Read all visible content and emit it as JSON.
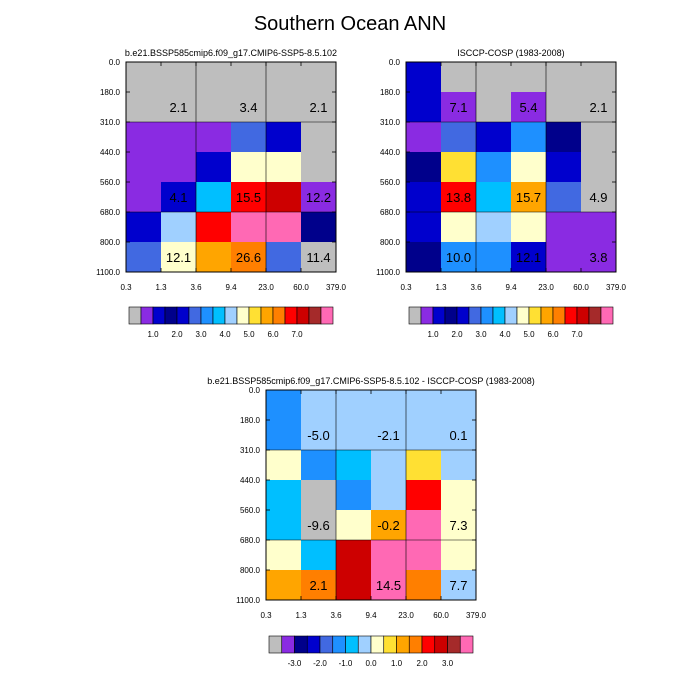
{
  "title": "Southern Ocean ANN",
  "colors": {
    "abs_palette": [
      "#bebebe",
      "#8a2be2",
      "#0000cd",
      "#00008b",
      "#0000cd",
      "#4169e1",
      "#1e90ff",
      "#00bfff",
      "#a0d0ff",
      "#ffffcc",
      "#ffe033",
      "#ffa500",
      "#ff7f00",
      "#ff0000",
      "#cd0000",
      "#a52a2a",
      "#ff69b4"
    ],
    "diff_palette": [
      "#bebebe",
      "#8a2be2",
      "#00008b",
      "#0000cd",
      "#4169e1",
      "#1e90ff",
      "#00bfff",
      "#a0d0ff",
      "#ffffcc",
      "#ffe033",
      "#ffa500",
      "#ff7f00",
      "#ff0000",
      "#cd0000",
      "#a52a2a",
      "#ff69b4"
    ]
  },
  "chart_data": [
    {
      "type": "heatmap",
      "title": "b.e21.BSSP585cmip6.f09_g17.CMIP6-SSP5-8.5.102",
      "xticks": [
        "0.3",
        "1.3",
        "3.6",
        "9.4",
        "23.0",
        "60.0",
        "379.0"
      ],
      "yticks": [
        "0.0",
        "180.0",
        "310.0",
        "440.0",
        "560.0",
        "680.0",
        "800.0",
        "1100.0"
      ],
      "cells": [
        [
          "#bebebe",
          "#bebebe",
          "#bebebe",
          "#bebebe",
          "#bebebe",
          "#bebebe"
        ],
        [
          "#bebebe",
          "#bebebe",
          "#bebebe",
          "#bebebe",
          "#bebebe",
          "#bebebe"
        ],
        [
          "#8a2be2",
          "#8a2be2",
          "#8a2be2",
          "#4169e1",
          "#0000cd",
          "#bebebe"
        ],
        [
          "#8a2be2",
          "#8a2be2",
          "#0000cd",
          "#ffffcc",
          "#ffffcc",
          "#bebebe"
        ],
        [
          "#8a2be2",
          "#0000cd",
          "#00bfff",
          "#ff0000",
          "#cd0000",
          "#8a2be2"
        ],
        [
          "#0000cd",
          "#a0d0ff",
          "#ff0000",
          "#ff69b4",
          "#ff69b4",
          "#00008b"
        ],
        [
          "#4169e1",
          "#ffffcc",
          "#ffa500",
          "#ff7f00",
          "#4169e1",
          "#bebebe"
        ]
      ],
      "labels": [
        {
          "text": "2.1",
          "row": 1,
          "col": 0.5
        },
        {
          "text": "3.4",
          "row": 1,
          "col": 2.5
        },
        {
          "text": "2.1",
          "row": 1,
          "col": 4.5
        },
        {
          "text": "4.1",
          "row": 4,
          "col": 0.5
        },
        {
          "text": "15.5",
          "row": 4,
          "col": 2.5
        },
        {
          "text": "12.2",
          "row": 4,
          "col": 4.5
        },
        {
          "text": "12.1",
          "row": 6,
          "col": 0.5
        },
        {
          "text": "26.6",
          "row": 6,
          "col": 2.5
        },
        {
          "text": "11.4",
          "row": 6,
          "col": 4.5
        }
      ],
      "colorbar": {
        "palette": "abs_palette",
        "labels": [
          "1.0",
          "2.0",
          "3.0",
          "4.0",
          "5.0",
          "6.0",
          "7.0"
        ]
      }
    },
    {
      "type": "heatmap",
      "title": "ISCCP-COSP (1983-2008)",
      "xticks": [
        "0.3",
        "1.3",
        "3.6",
        "9.4",
        "23.0",
        "60.0",
        "379.0"
      ],
      "yticks": [
        "0.0",
        "180.0",
        "310.0",
        "440.0",
        "560.0",
        "680.0",
        "800.0",
        "1100.0"
      ],
      "cells": [
        [
          "#0000cd",
          "#bebebe",
          "#bebebe",
          "#bebebe",
          "#bebebe",
          "#bebebe"
        ],
        [
          "#0000cd",
          "#8a2be2",
          "#bebebe",
          "#8a2be2",
          "#bebebe",
          "#bebebe"
        ],
        [
          "#8a2be2",
          "#4169e1",
          "#0000cd",
          "#1e90ff",
          "#00008b",
          "#bebebe"
        ],
        [
          "#00008b",
          "#ffe033",
          "#1e90ff",
          "#ffffcc",
          "#0000cd",
          "#bebebe"
        ],
        [
          "#0000cd",
          "#ff0000",
          "#00bfff",
          "#ffa500",
          "#4169e1",
          "#bebebe"
        ],
        [
          "#0000cd",
          "#ffffcc",
          "#a0d0ff",
          "#ffffcc",
          "#8a2be2",
          "#8a2be2"
        ],
        [
          "#00008b",
          "#1e90ff",
          "#1e90ff",
          "#0000cd",
          "#8a2be2",
          "#8a2be2"
        ]
      ],
      "labels": [
        {
          "text": "7.1",
          "row": 1,
          "col": 0.5
        },
        {
          "text": "5.4",
          "row": 1,
          "col": 2.5
        },
        {
          "text": "2.1",
          "row": 1,
          "col": 4.5
        },
        {
          "text": "13.8",
          "row": 4,
          "col": 0.5
        },
        {
          "text": "15.7",
          "row": 4,
          "col": 2.5
        },
        {
          "text": "4.9",
          "row": 4,
          "col": 4.5
        },
        {
          "text": "10.0",
          "row": 6,
          "col": 0.5
        },
        {
          "text": "12.1",
          "row": 6,
          "col": 2.5
        },
        {
          "text": "3.8",
          "row": 6,
          "col": 4.5
        }
      ],
      "colorbar": {
        "palette": "abs_palette",
        "labels": [
          "1.0",
          "2.0",
          "3.0",
          "4.0",
          "5.0",
          "6.0",
          "7.0"
        ]
      }
    },
    {
      "type": "heatmap",
      "title": "b.e21.BSSP585cmip6.f09_g17.CMIP6-SSP5-8.5.102 - ISCCP-COSP (1983-2008)",
      "xticks": [
        "0.3",
        "1.3",
        "3.6",
        "9.4",
        "23.0",
        "60.0",
        "379.0"
      ],
      "yticks": [
        "0.0",
        "180.0",
        "310.0",
        "440.0",
        "560.0",
        "680.0",
        "800.0",
        "1100.0"
      ],
      "cells": [
        [
          "#1e90ff",
          "#a0d0ff",
          "#a0d0ff",
          "#a0d0ff",
          "#a0d0ff",
          "#a0d0ff"
        ],
        [
          "#1e90ff",
          "#a0d0ff",
          "#a0d0ff",
          "#a0d0ff",
          "#a0d0ff",
          "#a0d0ff"
        ],
        [
          "#ffffcc",
          "#1e90ff",
          "#00bfff",
          "#a0d0ff",
          "#ffe033",
          "#a0d0ff"
        ],
        [
          "#00bfff",
          "#bebebe",
          "#1e90ff",
          "#a0d0ff",
          "#ff0000",
          "#ffffcc"
        ],
        [
          "#00bfff",
          "#bebebe",
          "#ffffcc",
          "#ffa500",
          "#ff69b4",
          "#ffffcc"
        ],
        [
          "#ffffcc",
          "#00bfff",
          "#cd0000",
          "#ff69b4",
          "#ff69b4",
          "#ffffcc"
        ],
        [
          "#ffa500",
          "#ff7f00",
          "#cd0000",
          "#ff69b4",
          "#ff7f00",
          "#a0d0ff"
        ]
      ],
      "labels": [
        {
          "text": "-5.0",
          "row": 1,
          "col": 0.5
        },
        {
          "text": "-2.1",
          "row": 1,
          "col": 2.5
        },
        {
          "text": "0.1",
          "row": 1,
          "col": 4.5
        },
        {
          "text": "-9.6",
          "row": 4,
          "col": 0.5
        },
        {
          "text": "-0.2",
          "row": 4,
          "col": 2.5
        },
        {
          "text": "7.3",
          "row": 4,
          "col": 4.5
        },
        {
          "text": "2.1",
          "row": 6,
          "col": 0.5
        },
        {
          "text": "14.5",
          "row": 6,
          "col": 2.5
        },
        {
          "text": "7.7",
          "row": 6,
          "col": 4.5
        }
      ],
      "colorbar": {
        "palette": "diff_palette",
        "labels": [
          "-3.0",
          "-2.0",
          "-1.0",
          "0.0",
          "1.0",
          "2.0",
          "3.0"
        ]
      }
    }
  ]
}
